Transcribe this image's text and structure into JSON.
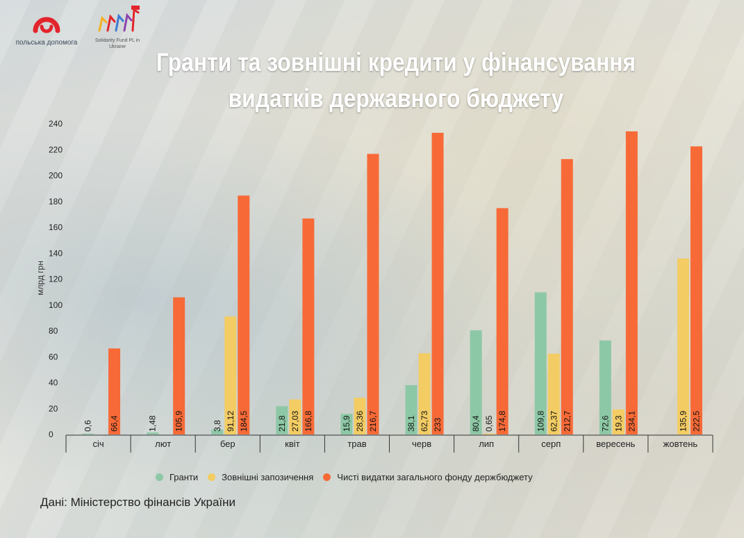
{
  "header": {
    "title_line1": "Гранти та зовнішні кредити у фінансування",
    "title_line2": "видатків державного бюджету",
    "logo_left_caption": "польська допомога",
    "logo_right_caption": "Solidarity Fund PL in Ukraine"
  },
  "source": "Дані: Міністерство фінансів України",
  "chart_data": {
    "type": "bar",
    "title": "Гранти та зовнішні кредити у фінансування видатків державного бюджету",
    "ylabel": "млрд грн",
    "xlabel": "",
    "ylim": [
      0,
      240
    ],
    "yticks": [
      0,
      20,
      40,
      60,
      80,
      100,
      120,
      140,
      160,
      180,
      200,
      220,
      240
    ],
    "categories": [
      "січ",
      "лют",
      "бер",
      "квіт",
      "трав",
      "черв",
      "лип",
      "серп",
      "вересень",
      "жовтень"
    ],
    "series": [
      {
        "name": "Гранти",
        "color": "#8dc8a6",
        "values": [
          0.6,
          1.48,
          3.8,
          21.8,
          15.9,
          38.1,
          80.4,
          109.8,
          72.6,
          null
        ],
        "labels": [
          "0,6",
          "1,48",
          "3,8",
          "21,8",
          "15,9",
          "38,1",
          "80,4",
          "109,8",
          "72,6",
          ""
        ]
      },
      {
        "name": "Зовнішні запозичення",
        "color": "#f3cc63",
        "values": [
          null,
          null,
          91.12,
          27.03,
          28.36,
          62.73,
          0.65,
          62.37,
          19.3,
          135.9
        ],
        "labels": [
          "",
          "",
          "91,12",
          "27,03",
          "28,36",
          "62,73",
          "0,65",
          "62,37",
          "19,3",
          "135,9"
        ]
      },
      {
        "name": "Чисті видатки загального фонду держбюджету",
        "color": "#f76a37",
        "values": [
          66.4,
          105.9,
          184.5,
          166.8,
          216.7,
          233,
          174.8,
          212.7,
          234.1,
          222.5
        ],
        "labels": [
          "66,4",
          "105,9",
          "184,5",
          "166,8",
          "216,7",
          "233",
          "174,8",
          "212,7",
          "234,1",
          "222,5"
        ]
      }
    ],
    "legend": "bottom",
    "grid": false
  }
}
